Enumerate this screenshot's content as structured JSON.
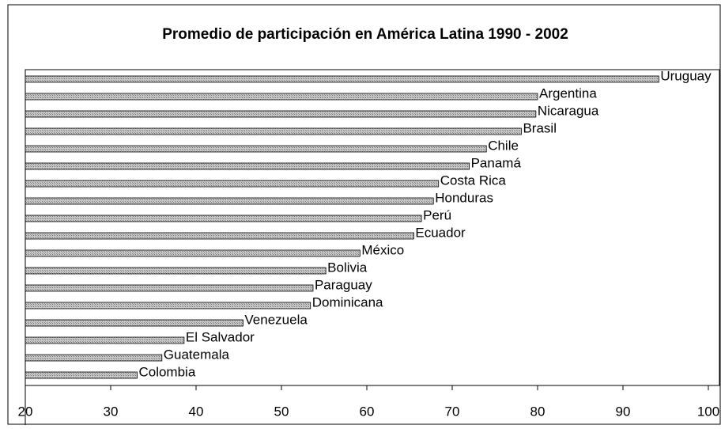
{
  "chart_data": {
    "type": "bar",
    "orientation": "horizontal",
    "title": "Promedio de participación en América Latina 1990 - 2002",
    "categories": [
      "Uruguay",
      "Argentina",
      "Nicaragua",
      "Brasil",
      "Chile",
      "Panamá",
      "Costa Rica",
      "Honduras",
      "Perú",
      "Ecuador",
      "México",
      "Bolivia",
      "Paraguay",
      "Dominicana",
      "Venezuela",
      "El Salvador",
      "Guatemala",
      "Colombia"
    ],
    "values": [
      94.2,
      80,
      79.8,
      78.1,
      74,
      72,
      68.4,
      67.8,
      66.4,
      65.5,
      59.2,
      55.2,
      53.7,
      53.4,
      45.5,
      38.6,
      36,
      33.1
    ],
    "color": "#a0a0a0",
    "xlim": [
      20,
      100
    ],
    "xticks": [
      20,
      30,
      40,
      50,
      60,
      70,
      80,
      90,
      100
    ]
  }
}
